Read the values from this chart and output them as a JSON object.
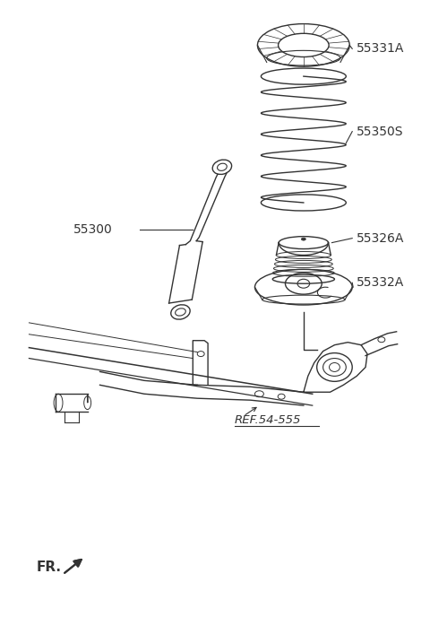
{
  "bg_color": "#ffffff",
  "line_color": "#333333",
  "label_color": "#333333",
  "figsize": [
    4.8,
    6.88
  ],
  "dpi": 100,
  "xlim": [
    0,
    480
  ],
  "ylim": [
    0,
    688
  ]
}
